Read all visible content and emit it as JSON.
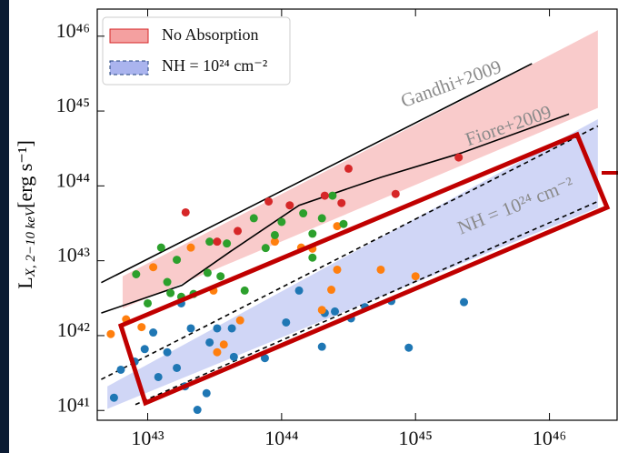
{
  "chart_data": {
    "type": "scatter",
    "log_x": true,
    "log_y": true,
    "ylabel": {
      "base": "L",
      "sub": "X, 2−10 keV",
      "unit": "[erg s⁻¹]"
    },
    "xlim": [
      4.2e+42,
      3.2e+46
    ],
    "ylim": [
      7.4e+40,
      2.3e+46
    ],
    "xticks": [
      {
        "value": 1e+43,
        "label": "10⁴³"
      },
      {
        "value": 1e+44,
        "label": "10⁴⁴"
      },
      {
        "value": 1e+45,
        "label": "10⁴⁵"
      },
      {
        "value": 1e+46,
        "label": "10⁴⁶"
      }
    ],
    "yticks": [
      {
        "value": 1e+41,
        "label": "10⁴¹"
      },
      {
        "value": 1e+42,
        "label": "10⁴²"
      },
      {
        "value": 1e+43,
        "label": "10⁴³"
      },
      {
        "value": 1e+44,
        "label": "10⁴⁴"
      },
      {
        "value": 1e+45,
        "label": "10⁴⁵"
      },
      {
        "value": 1e+46,
        "label": "10⁴⁶"
      }
    ],
    "legend": "upper left",
    "bands": [
      {
        "name": "No Absorption",
        "color": "#f4a0a0",
        "edge": "#d62728",
        "x": [
          6.5e+42,
          2.3e+46
        ],
        "low": [
          2.3e+42,
          1.1e+45
        ],
        "high": [
          6.2e+42,
          1.2e+46
        ]
      },
      {
        "name": "NH = 10²⁴ cm⁻²",
        "color": "#aab4ee",
        "edge": "#1f3f7a",
        "x": [
          5e+42,
          2.3e+46
        ],
        "low": [
          1.05e+41,
          5.1e+43
        ],
        "high": [
          2.1e+41,
          7.8e+44
        ]
      }
    ],
    "lines": [
      {
        "name": "Gandhi+2009",
        "color": "#000000",
        "x": [
          4.5e+42,
          7.4e+45
        ],
        "values": [
          5.1e+42,
          4.3e+45
        ]
      },
      {
        "name": "Fiore+2009",
        "color": "#000000",
        "x": [
          4.5e+42,
          1.8e+43,
          4.2e+43,
          1.35e+44,
          5.5e+44,
          2.2e+45,
          1.4e+46
        ],
        "values": [
          2e+42,
          4.7e+42,
          1.35e+43,
          5.5e+43,
          1.3e+44,
          2.75e+44,
          9.1e+44
        ]
      },
      {
        "color": "#000000",
        "dashed": true,
        "x": [
          4.5e+42,
          2.3e+46
        ],
        "values": [
          2.6e+41,
          6.3e+44
        ]
      },
      {
        "color": "#000000",
        "dashed": true,
        "x": [
          8.1e+42,
          2.3e+46
        ],
        "values": [
          1.2e+41,
          6.2e+43
        ]
      }
    ],
    "annotations": [
      "NH = 10²⁴ cm⁻²"
    ],
    "series": [
      {
        "color": "#1f77b4",
        "x": [
          5.6e+42,
          6.3e+42,
          8e+42,
          1.1e+43,
          1.2e+43,
          1.4e+43,
          1.65e+43,
          1.78e+43,
          2.1e+43,
          2.35e+43,
          1.9e+43,
          2.75e+43,
          2.9e+43,
          3.3e+43,
          4.25e+43,
          4.4e+43,
          7.5e+43,
          1.08e+44,
          1.35e+44,
          2e+44,
          2.1e+44,
          2.5e+44,
          3.3e+44,
          4.2e+44,
          6.6e+44,
          8.9e+44,
          2.3e+45,
          9.5e+42
        ],
        "values": [
          1.48e+41,
          3.5e+41,
          4.5e+41,
          1.1e+42,
          2.8e+41,
          6e+41,
          3.7e+41,
          2.7e+42,
          1.25e+42,
          1.02e+41,
          2.1e+41,
          1.7e+41,
          8.1e+41,
          1.25e+42,
          1.25e+42,
          5.2e+41,
          5e+41,
          1.5e+42,
          4e+42,
          7.1e+41,
          2e+42,
          2.1e+42,
          1.7e+42,
          2.4e+42,
          2.9e+42,
          6.9e+41,
          2.8e+42,
          6.6e+41
        ]
      },
      {
        "color": "#ff7f0e",
        "x": [
          5.3e+42,
          6.9e+42,
          1.1e+43,
          9e+42,
          2.1e+43,
          4.9e+43,
          3.1e+43,
          8.9e+43,
          1.4e+44,
          1.7e+44,
          2e+44,
          2.6e+44,
          2.6e+44,
          2.35e+44,
          5.5e+44,
          1e+45,
          3.7e+43,
          3.3e+43
        ],
        "values": [
          1.05e+42,
          1.65e+42,
          8.2e+42,
          1.3e+42,
          1.5e+43,
          1.6e+42,
          4e+42,
          1.8e+43,
          1.5e+43,
          1.45e+43,
          2.2e+42,
          2.9e+43,
          7.6e+42,
          4.1e+42,
          7.6e+42,
          6.2e+42,
          7.6e+41,
          6e+41
        ]
      },
      {
        "color": "#2ca02c",
        "x": [
          1.26e+43,
          1e+43,
          8.2e+42,
          1.4e+43,
          1.65e+43,
          1.78e+43,
          2.8e+43,
          3.5e+43,
          3.9e+43,
          5.3e+43,
          7.6e+43,
          8.9e+43,
          1.45e+44,
          1.7e+44,
          2e+44,
          2.4e+44,
          2.9e+44,
          1.7e+44,
          1e+44,
          2.2e+43,
          1.48e+43,
          2.9e+43,
          6.2e+43
        ],
        "values": [
          1.5e+43,
          2.7e+42,
          6.6e+42,
          5.2e+42,
          1.03e+43,
          3.3e+42,
          6.9e+42,
          6.2e+42,
          1.7e+43,
          4e+42,
          1.48e+43,
          2.2e+43,
          4.3e+43,
          2.3e+43,
          3.7e+43,
          7.4e+43,
          3.1e+43,
          1.1e+43,
          3.3e+43,
          3.6e+42,
          3.7e+42,
          1.8e+43,
          3.7e+43
        ]
      },
      {
        "color": "#d62728",
        "x": [
          1.92e+43,
          8e+43,
          3.16e+44,
          7.1e+44,
          2.1e+45,
          2.1e+44,
          2.8e+44,
          4.7e+43,
          3.3e+43,
          1.15e+44
        ],
        "values": [
          4.43e+43,
          6.2e+43,
          1.7e+44,
          7.8e+43,
          2.4e+44,
          7.4e+43,
          5.9e+43,
          2.5e+43,
          1.8e+43,
          5.5e+43
        ]
      }
    ]
  }
}
